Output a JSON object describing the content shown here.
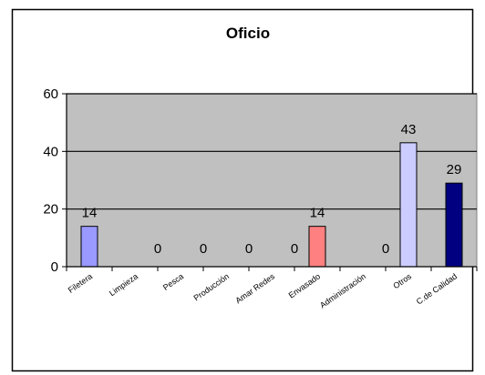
{
  "chart_data": {
    "type": "bar",
    "title": "Oficio",
    "xlabel": "",
    "ylabel": "",
    "ylim": [
      0,
      60
    ],
    "yticks": [
      0,
      20,
      40,
      60
    ],
    "grid": true,
    "legend": "none",
    "categories": [
      "Filetera",
      "Limpieza",
      "Pesca",
      "Producción",
      "Amar Redes",
      "Envasado",
      "Administración",
      "Otros",
      "C.de Calidad"
    ],
    "values": [
      14,
      0,
      0,
      0,
      0,
      14,
      0,
      43,
      29
    ],
    "data_labels": [
      "14",
      "0",
      "0",
      "0",
      "0",
      "14",
      "0",
      "43",
      "29"
    ],
    "bar_colors": [
      "#9999ff",
      "#9999ff",
      "#9999ff",
      "#9999ff",
      "#9999ff",
      "#ff8080",
      "#9999ff",
      "#ccccff",
      "#000080"
    ],
    "plot_background": "#c0c0c0"
  }
}
